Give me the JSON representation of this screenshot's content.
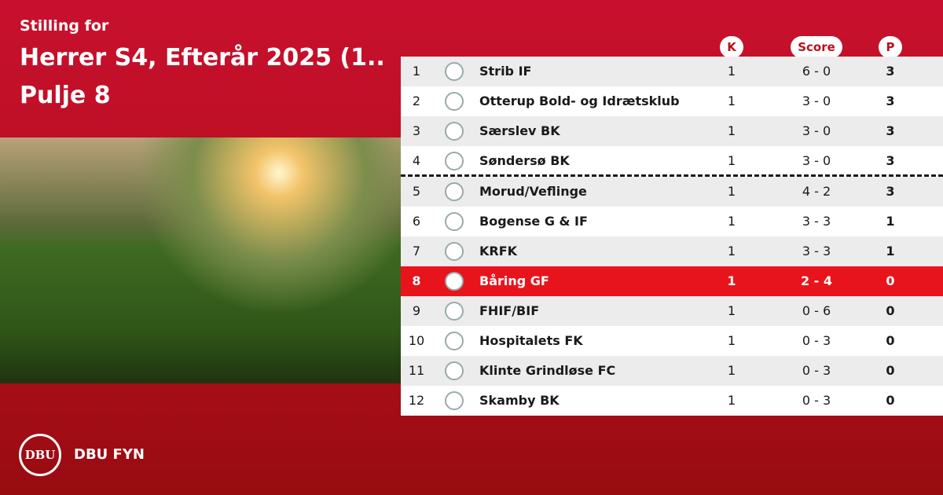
{
  "header": {
    "subtitle": "Stilling for",
    "title": "Herrer S4, Efterår 2025 (1..",
    "pool": "Pulje 8"
  },
  "table": {
    "columns": [
      "K",
      "Score",
      "P"
    ],
    "rows": [
      [
        1,
        "Strib IF",
        1,
        "6 - 0",
        3
      ],
      [
        2,
        "Otterup Bold- og Idrætsklub",
        1,
        "3 - 0",
        3
      ],
      [
        3,
        "Særslev BK",
        1,
        "3 - 0",
        3
      ],
      [
        4,
        "Søndersø BK",
        1,
        "3 - 0",
        3
      ],
      [
        5,
        "Morud/Veflinge",
        1,
        "4 - 2",
        3
      ],
      [
        6,
        "Bogense G & IF",
        1,
        "3 - 3",
        1
      ],
      [
        7,
        "KRFK",
        1,
        "3 - 3",
        1
      ],
      [
        8,
        "Båring GF",
        1,
        "2 - 4",
        0
      ],
      [
        9,
        "FHIF/BIF",
        1,
        "0 - 6",
        0
      ],
      [
        10,
        "Hospitalets FK",
        1,
        "0 - 3",
        0
      ],
      [
        11,
        "Klinte Grindløse FC",
        1,
        "0 - 3",
        0
      ],
      [
        12,
        "Skamby BK",
        1,
        "0 - 3",
        0
      ]
    ]
  },
  "footer": {
    "logo_text": "DBU",
    "brand": "DBU FYN"
  }
}
